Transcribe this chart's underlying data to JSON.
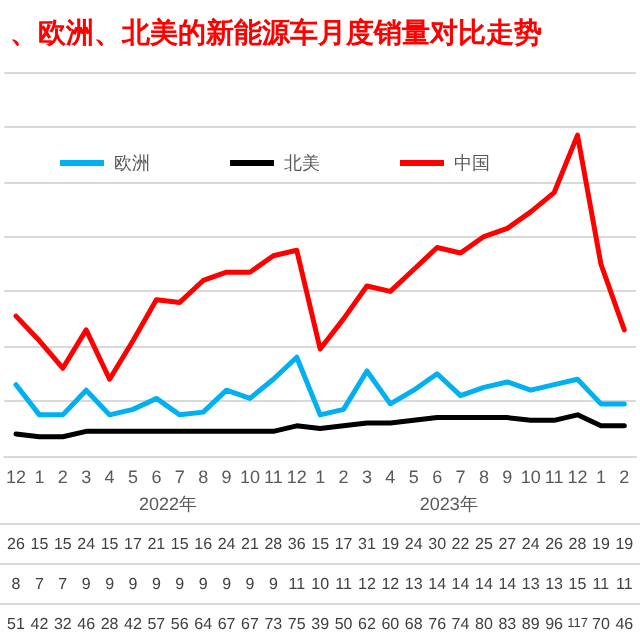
{
  "chart_data": {
    "type": "line",
    "title": "、欧洲、北美的新能源车月度销量对比走势",
    "categories": [
      "12",
      "1",
      "2",
      "3",
      "4",
      "5",
      "6",
      "7",
      "8",
      "9",
      "10",
      "11",
      "12",
      "1",
      "2",
      "3",
      "4",
      "5",
      "6",
      "7",
      "8",
      "9",
      "10",
      "11",
      "12",
      "1",
      "2"
    ],
    "annotations": [
      "2022年",
      "2023年"
    ],
    "series": [
      {
        "name": "欧洲",
        "color": "#00b0f0",
        "values": [
          26,
          15,
          15,
          24,
          15,
          17,
          21,
          15,
          16,
          24,
          21,
          28,
          36,
          15,
          17,
          31,
          19,
          24,
          30,
          22,
          25,
          27,
          24,
          26,
          28,
          19,
          19
        ]
      },
      {
        "name": "北美",
        "color": "#000000",
        "values": [
          8,
          7,
          7,
          9,
          9,
          9,
          9,
          9,
          9,
          9,
          9,
          9,
          11,
          10,
          11,
          12,
          12,
          13,
          14,
          14,
          14,
          14,
          13,
          13,
          15,
          11,
          11
        ]
      },
      {
        "name": "中国",
        "color": "#ff0000",
        "values": [
          51,
          42,
          32,
          46,
          28,
          42,
          57,
          56,
          64,
          67,
          67,
          73,
          75,
          39,
          50,
          62,
          60,
          68,
          76,
          74,
          80,
          83,
          89,
          96,
          117,
          70,
          46
        ]
      }
    ],
    "ylim": [
      0,
      140
    ],
    "yticks": [
      {
        "value": 0,
        "label": null
      },
      {
        "value": 20,
        "label": null
      },
      {
        "value": 40,
        "label": null
      },
      {
        "value": 60,
        "label": null
      },
      {
        "value": 80,
        "label": null
      },
      {
        "value": 100,
        "label": null
      },
      {
        "value": 120,
        "label": null
      },
      {
        "value": 140,
        "label": null
      }
    ],
    "tick_labels": "x",
    "grid": "y",
    "legend": "top",
    "marker": "none",
    "line_style": "solid",
    "data_labels": true
  }
}
